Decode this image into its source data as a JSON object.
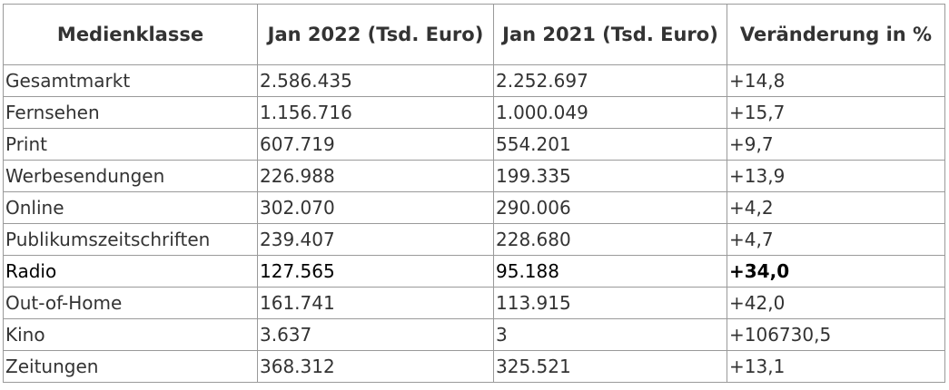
{
  "table": {
    "header": [
      "Medienklasse",
      "Jan 2022 (Tsd. Euro)",
      "Jan 2021 (Tsd. Euro)",
      "Veränderung in %"
    ],
    "rows": [
      [
        "Gesamtmarkt",
        "2.586.435",
        "2.252.697",
        "+14,8"
      ],
      [
        "Fernsehen",
        "1.156.716",
        "1.000.049",
        "+15,7"
      ],
      [
        "Print",
        "607.719",
        "554.201",
        "+9,7"
      ],
      [
        "Werbesendungen",
        "226.988",
        "199.335",
        "+13,9"
      ],
      [
        "Online",
        "302.070",
        "290.006",
        "+4,2"
      ],
      [
        "Publikumszeitschriften",
        "239.407",
        "228.680",
        "+4,7"
      ],
      [
        "Radio",
        "127.565",
        "95.188",
        "+34,0"
      ],
      [
        "Out-of-Home",
        "161.741",
        "113.915",
        "+42,0"
      ],
      [
        "Kino",
        "3.637",
        "3",
        "+106730,5"
      ],
      [
        "Zeitungen",
        "368.312",
        "325.521",
        "+13,1"
      ]
    ]
  }
}
